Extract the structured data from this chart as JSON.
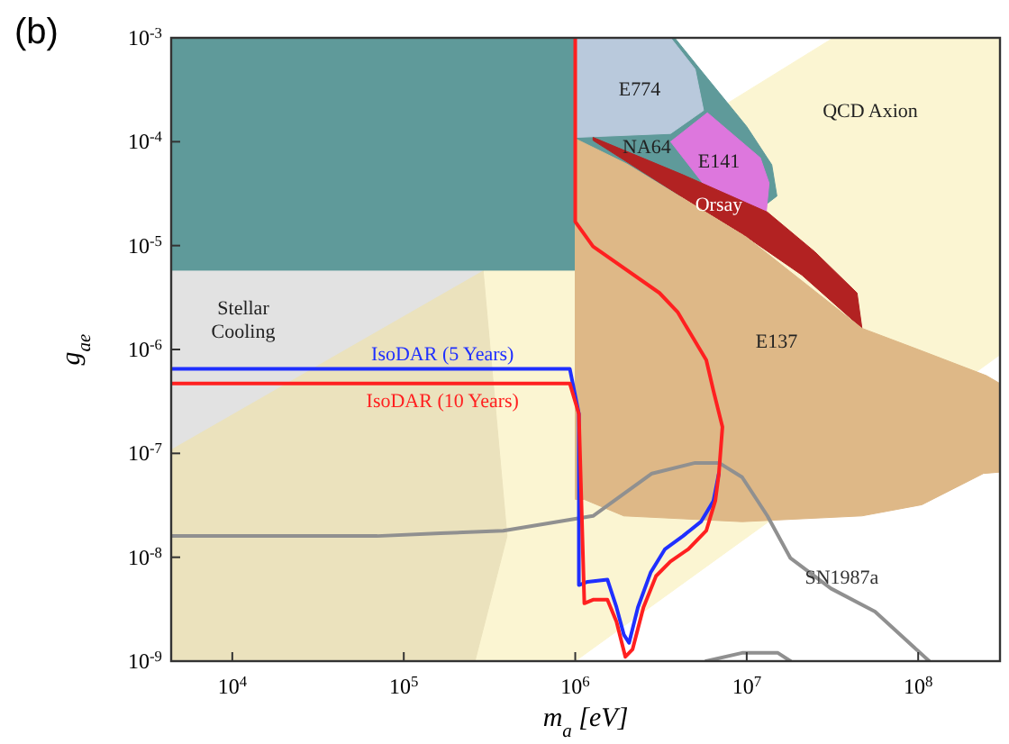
{
  "chart_data": {
    "type": "area",
    "log": "xy",
    "xlabel": "m$_{a}$ [eV]",
    "ylabel": "g$_{ae}$",
    "xlim": [
      4400,
      300000000
    ],
    "ylim": [
      1e-09,
      0.001
    ],
    "xticks": [
      {
        "value": 10000,
        "label": "10$^{4}$"
      },
      {
        "value": 100000,
        "label": "10$^{5}$"
      },
      {
        "value": 1000000,
        "label": "10$^{6}$"
      },
      {
        "value": 10000000,
        "label": "10$^{7}$"
      },
      {
        "value": 100000000,
        "label": "10$^{8}$"
      }
    ],
    "yticks": [
      {
        "value": 1e-09,
        "label": "10$^{-9}$"
      },
      {
        "value": 1e-08,
        "label": "10$^{-8}$"
      },
      {
        "value": 1e-07,
        "label": "10$^{-7}$"
      },
      {
        "value": 1e-06,
        "label": "10$^{-6}$"
      },
      {
        "value": 1e-05,
        "label": "10$^{-5}$"
      },
      {
        "value": 0.0001,
        "label": "10$^{-4}$"
      },
      {
        "value": 0.001,
        "label": "10$^{-3}$"
      }
    ],
    "series": [
      {
        "name": "QCD Axion",
        "color": "#fbf5d2",
        "x": [
          4400,
          1000000,
          32000000,
          300000000,
          300000000,
          1000000,
          4400
        ],
        "values": [
          1.1e-07,
          2.9e-05,
          0.001,
          0.001,
          8.9e-07,
          1e-09,
          1e-09
        ]
      },
      {
        "color": "#ebe2bd",
        "x": [
          4400,
          290000,
          400000,
          260000,
          4400
        ],
        "values": [
          1.1e-07,
          5.8e-06,
          1.6e-08,
          1e-09,
          1e-09
        ]
      },
      {
        "name": "Stellar\nCooling",
        "color": "#e2e2e2",
        "x": [
          4400,
          290000,
          4400
        ],
        "values": [
          5.8e-06,
          5.8e-06,
          1.1e-07
        ]
      },
      {
        "color": "#5f9a9a",
        "x": [
          4400,
          1000000,
          1000000,
          4400
        ],
        "values": [
          0.001,
          0.001,
          5.8e-06,
          5.8e-06
        ]
      },
      {
        "name": "NA64",
        "color": "#5f9a9a",
        "x": [
          1000000,
          3800000,
          5500000,
          10000000,
          14000000,
          15000000,
          13000000,
          10000000,
          1000000
        ],
        "values": [
          0.001,
          0.001,
          0.00047,
          0.00014,
          6e-05,
          3e-05,
          2.5e-05,
          2.5e-05,
          4e-05
        ]
      },
      {
        "name": "E774",
        "color": "#b9c9dc",
        "x": [
          1000000,
          3600000,
          5000000,
          5600000,
          3600000,
          1000000
        ],
        "values": [
          0.001,
          0.001,
          0.0005,
          0.0002,
          0.00012,
          0.00011
        ]
      },
      {
        "name": "E141",
        "color": "#dd77dd",
        "x": [
          3600000,
          5900000,
          12000000,
          13500000,
          13000000,
          5900000
        ],
        "values": [
          0.0001,
          0.00019,
          7e-05,
          4e-05,
          2.1e-05,
          3.5e-05
        ]
      },
      {
        "name": "Orsay",
        "color": "#b22222",
        "x": [
          1270000,
          4250000,
          13200000,
          25000000,
          44000000,
          47000000,
          21000000,
          9400000,
          4250000,
          1270000
        ],
        "values": [
          0.00011,
          4.8e-05,
          2.1e-05,
          8.7e-06,
          3.5e-06,
          1.6e-06,
          5.2e-06,
          1.3e-05,
          2.9e-05,
          0.000103
        ]
      },
      {
        "name": "E137",
        "color": "#deb887",
        "x": [
          1000000,
          2000000,
          10000000,
          47000000,
          100000000,
          250000000,
          300000000,
          300000000,
          240000000,
          105000000,
          47000000,
          9400000,
          1920000,
          1130000,
          1000000
        ],
        "values": [
          0.000107,
          6.1e-05,
          1.2e-05,
          1.6e-06,
          1e-06,
          5.6e-07,
          4.7e-07,
          6.6e-08,
          6.4e-08,
          3.2e-08,
          2.5e-08,
          2.2e-08,
          2.5e-08,
          3.6e-08,
          3.6e-08
        ]
      },
      {
        "type": "line",
        "name": "SN1987a",
        "color": "#909090",
        "x": [
          4400,
          70000,
          164000,
          380000,
          1270000,
          2800000,
          5000000,
          6900000,
          9400000,
          13200000,
          18000000,
          31000000,
          56000000,
          116000000
        ],
        "values": [
          1.6e-08,
          1.6e-08,
          1.7e-08,
          1.8e-08,
          2.5e-08,
          6.4e-08,
          8.1e-08,
          8.1e-08,
          5.9e-08,
          2.5e-08,
          9.8e-09,
          5e-09,
          3e-09,
          1e-09
        ]
      },
      {
        "type": "line",
        "color": "#909090",
        "x": [
          5800000,
          9400000,
          15200000,
          18000000
        ],
        "values": [
          1e-09,
          1.2e-09,
          1.2e-09,
          1e-09
        ]
      },
      {
        "type": "line",
        "name": "IsoDAR (5 Years)",
        "color": "#1f2fff",
        "x": [
          4400,
          930000,
          1050000,
          1050000,
          1180000,
          1540000,
          1740000,
          1920000,
          2060000,
          2320000,
          2750000,
          3340000,
          4250000,
          5410000,
          6400000,
          6880000
        ],
        "values": [
          6.5e-07,
          6.5e-07,
          2.4e-07,
          5.4e-09,
          5.8e-09,
          6.1e-09,
          3.3e-09,
          1.8e-09,
          1.5e-09,
          3.3e-09,
          7.1e-09,
          1.2e-08,
          1.6e-08,
          2.2e-08,
          3.5e-08,
          6.4e-08
        ]
      },
      {
        "type": "line",
        "name": "IsoDAR (10 Years)",
        "color": "#ff2020",
        "x": [
          4400,
          930000,
          1050000,
          1130000,
          1270000,
          1540000,
          1740000,
          1960000,
          2160000,
          2500000,
          2960000,
          3590000,
          4570000,
          5810000,
          6560000,
          6880000,
          7220000,
          6400000,
          5810000,
          3950000,
          3100000,
          1270000,
          1000000,
          1000000
        ],
        "values": [
          4.7e-07,
          4.7e-07,
          2.4e-07,
          3.6e-09,
          3.9e-09,
          3.9e-09,
          2.4e-09,
          1.1e-09,
          1.3e-09,
          3.3e-09,
          6.6e-09,
          9.1e-09,
          1.2e-08,
          1.8e-08,
          3.5e-08,
          6.4e-08,
          1.8e-07,
          4e-07,
          7.9e-07,
          2.3e-06,
          3.5e-06,
          9.8e-06,
          1.7e-05,
          0.001
        ]
      }
    ],
    "annotations": [
      "(b)"
    ]
  }
}
